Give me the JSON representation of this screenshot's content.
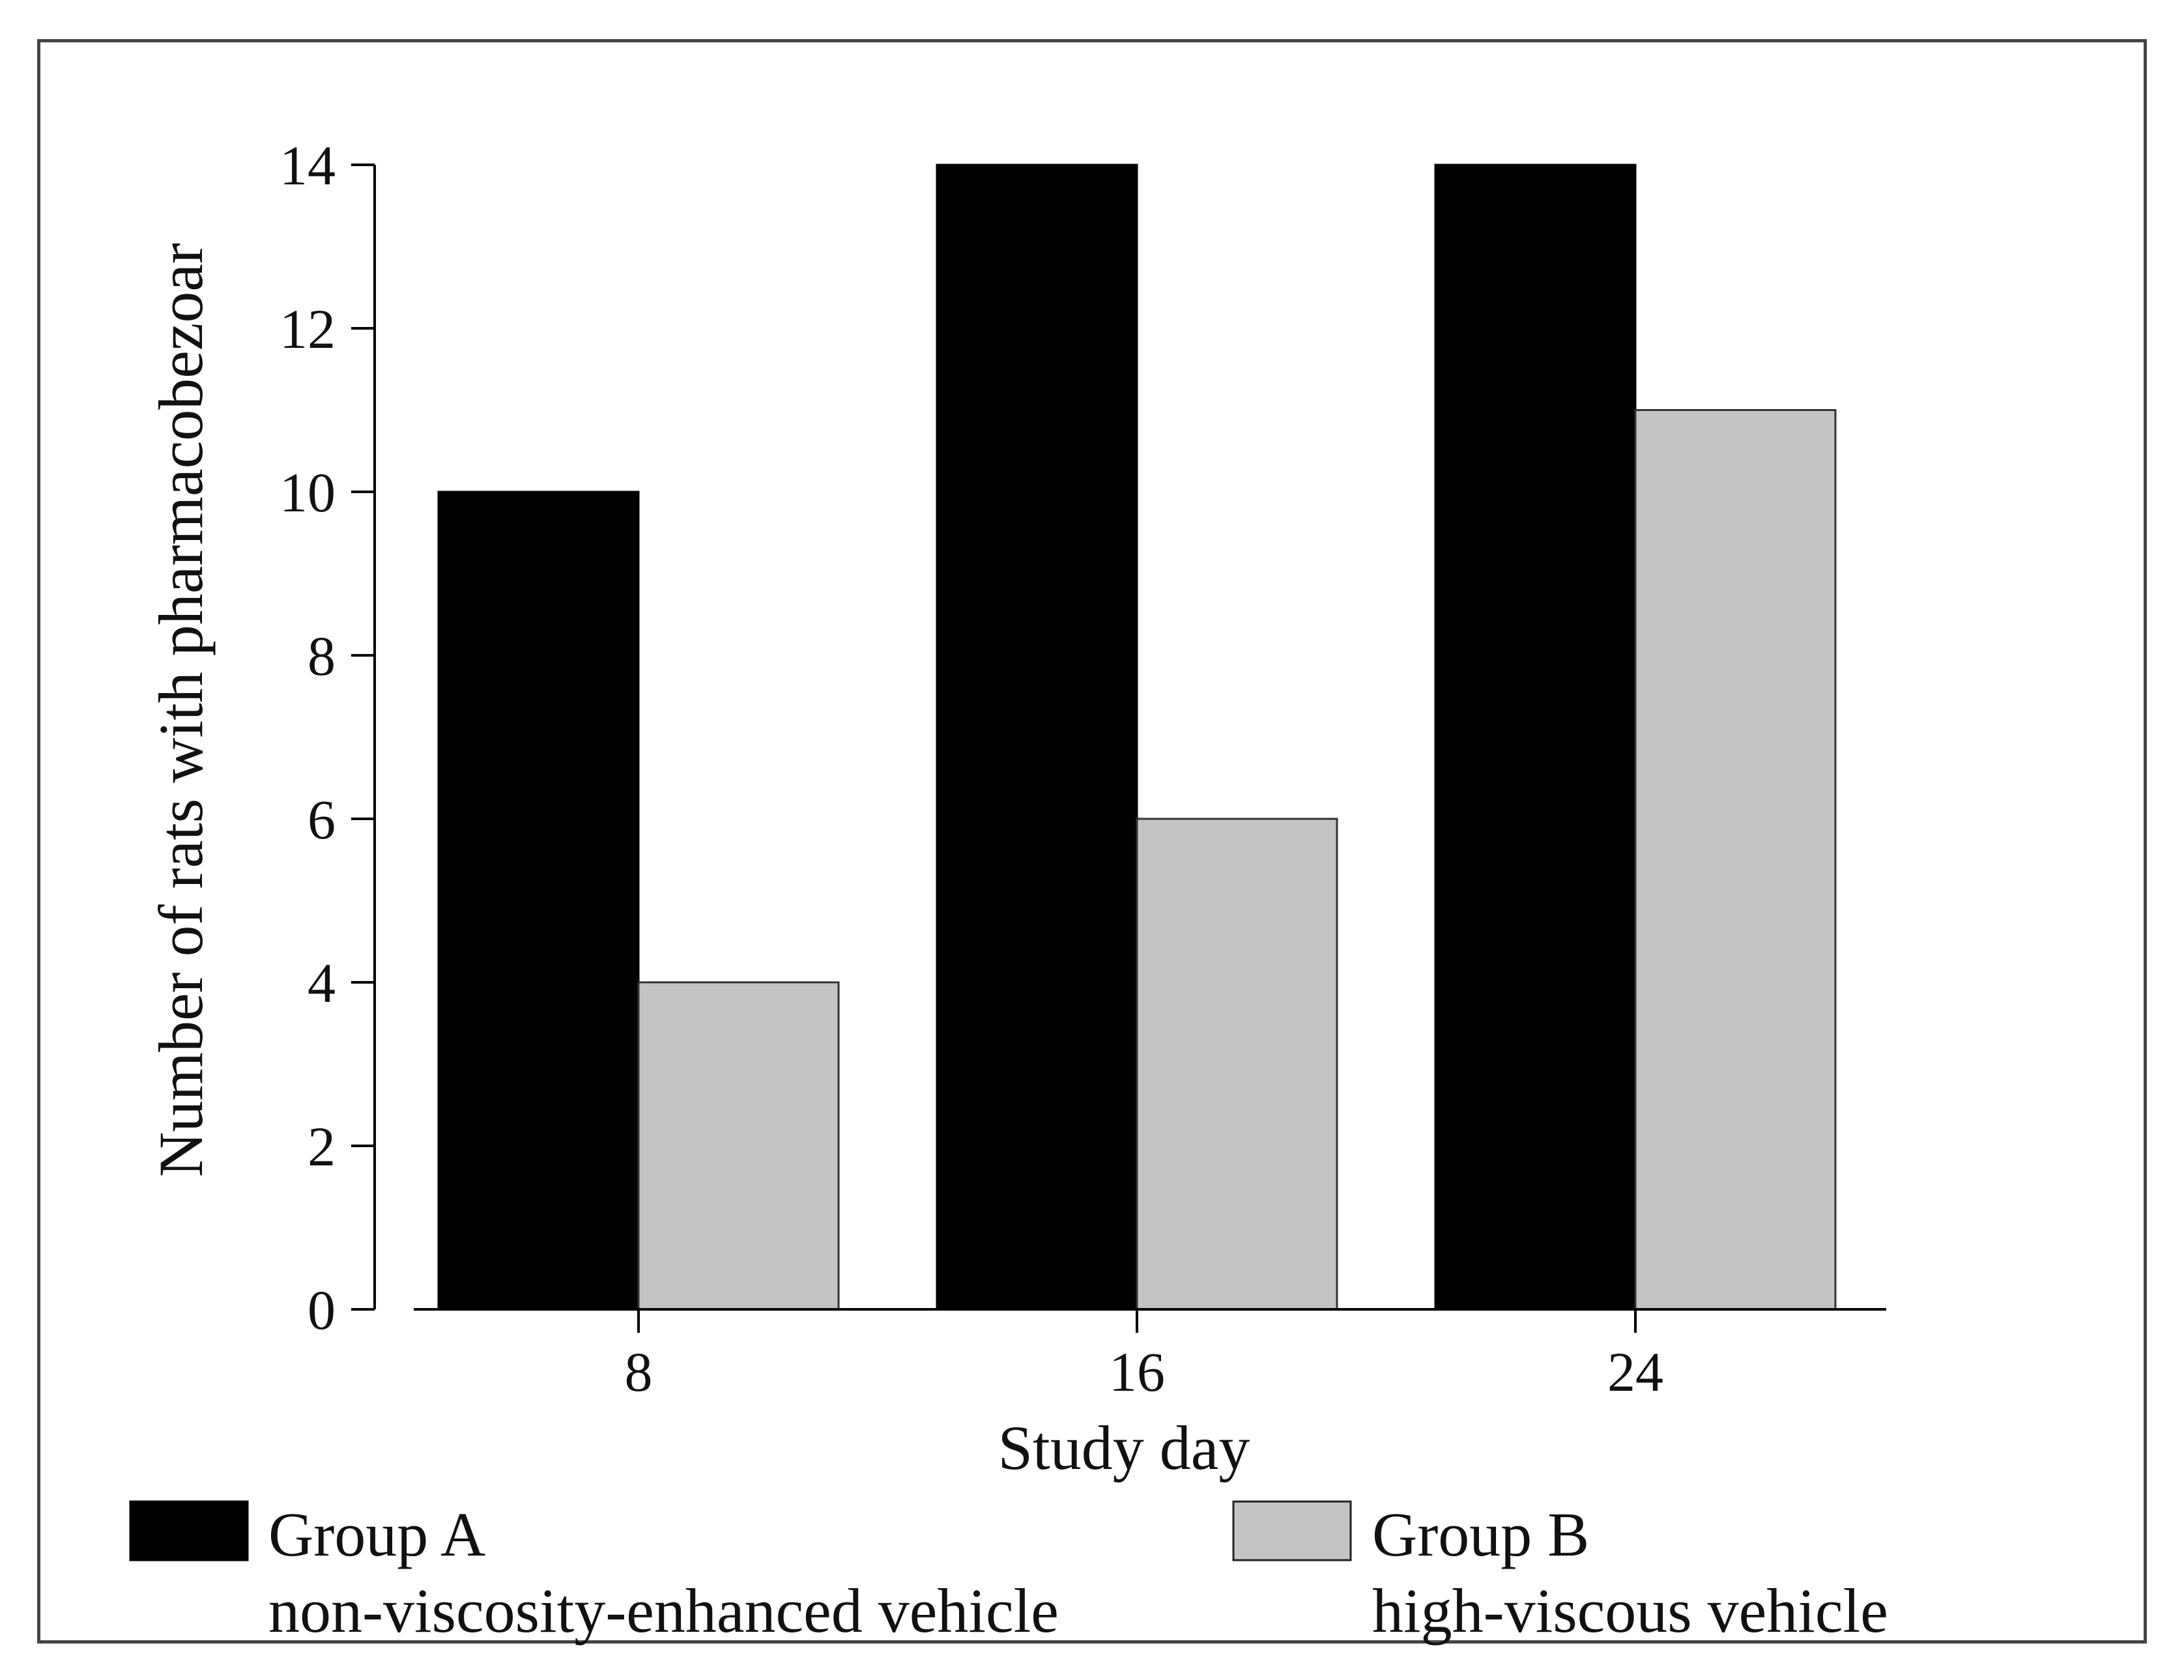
{
  "chart_data": {
    "type": "bar",
    "title": "",
    "xlabel": "Study day",
    "ylabel": "Number of rats with pharmacobezoar",
    "categories": [
      "8",
      "16",
      "24"
    ],
    "series": [
      {
        "name": "Group A",
        "description": "non-viscosity-enhanced vehicle",
        "color": "#000000",
        "values": [
          10,
          14,
          14
        ]
      },
      {
        "name": "Group B",
        "description": "high-viscous vehicle",
        "color": "#c4c4c4",
        "values": [
          4,
          6,
          11
        ]
      }
    ],
    "ylim": [
      0,
      14
    ],
    "yticks": [
      "0",
      "2",
      "4",
      "6",
      "8",
      "10",
      "12",
      "14"
    ],
    "grid": false,
    "legend_position": "bottom"
  }
}
